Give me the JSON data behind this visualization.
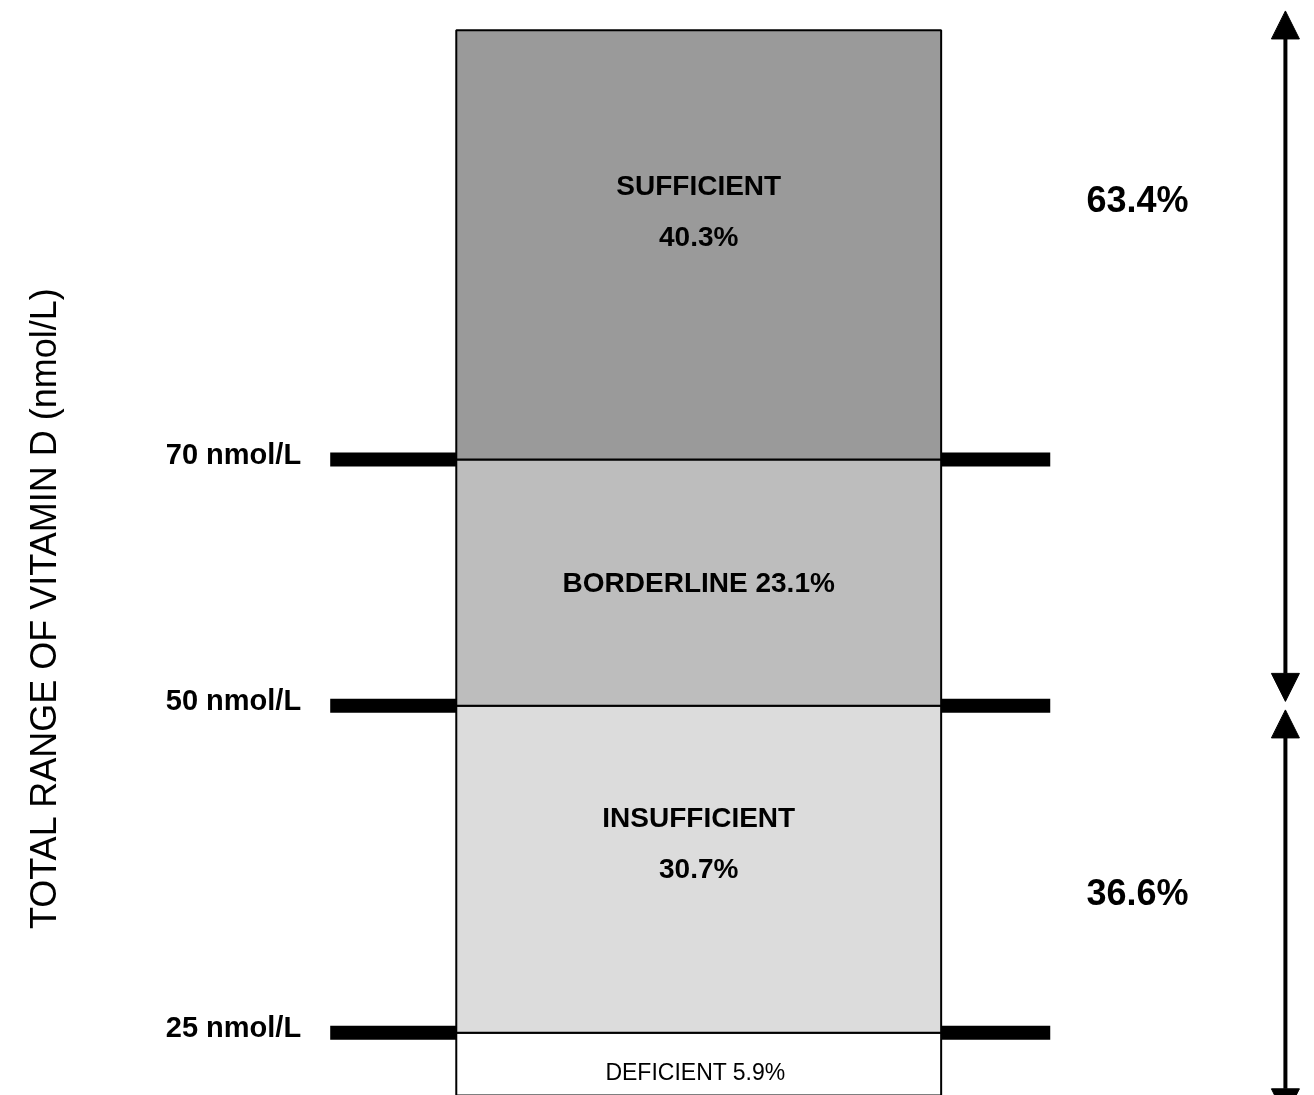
{
  "chart_data": {
    "type": "bar",
    "stacked": true,
    "categories": [
      null
    ],
    "ylabel": "TOTAL RANGE OF VITAMIN D (nmol/L)",
    "series": [
      {
        "name": "DEFICIENT",
        "color": "#ffffff",
        "values": [
          5.9
        ],
        "value_labels": [
          "5.9%"
        ]
      },
      {
        "name": "INSUFFICIENT",
        "color": "#dcdcdc",
        "values": [
          30.7
        ],
        "value_labels": [
          "30.7%"
        ]
      },
      {
        "name": "BORDERLINE",
        "color": "#bdbdbd",
        "values": [
          23.1
        ],
        "value_labels": [
          "23.1%"
        ]
      },
      {
        "name": "SUFFICIENT",
        "color": "#9a9a9a",
        "values": [
          40.3
        ],
        "value_labels": [
          "40.3%"
        ]
      }
    ],
    "ref_lines": [
      {
        "axis": "y",
        "value": 5.9,
        "label": "25 nmol/L",
        "color": "#000000"
      },
      {
        "axis": "y",
        "value": 36.6,
        "label": "50 nmol/L",
        "color": "#000000"
      },
      {
        "axis": "y",
        "value": 59.7,
        "label": "70 nmol/L",
        "color": "#000000"
      }
    ],
    "annotations": [
      "63.4%",
      "36.6%"
    ],
    "grid": false
  }
}
